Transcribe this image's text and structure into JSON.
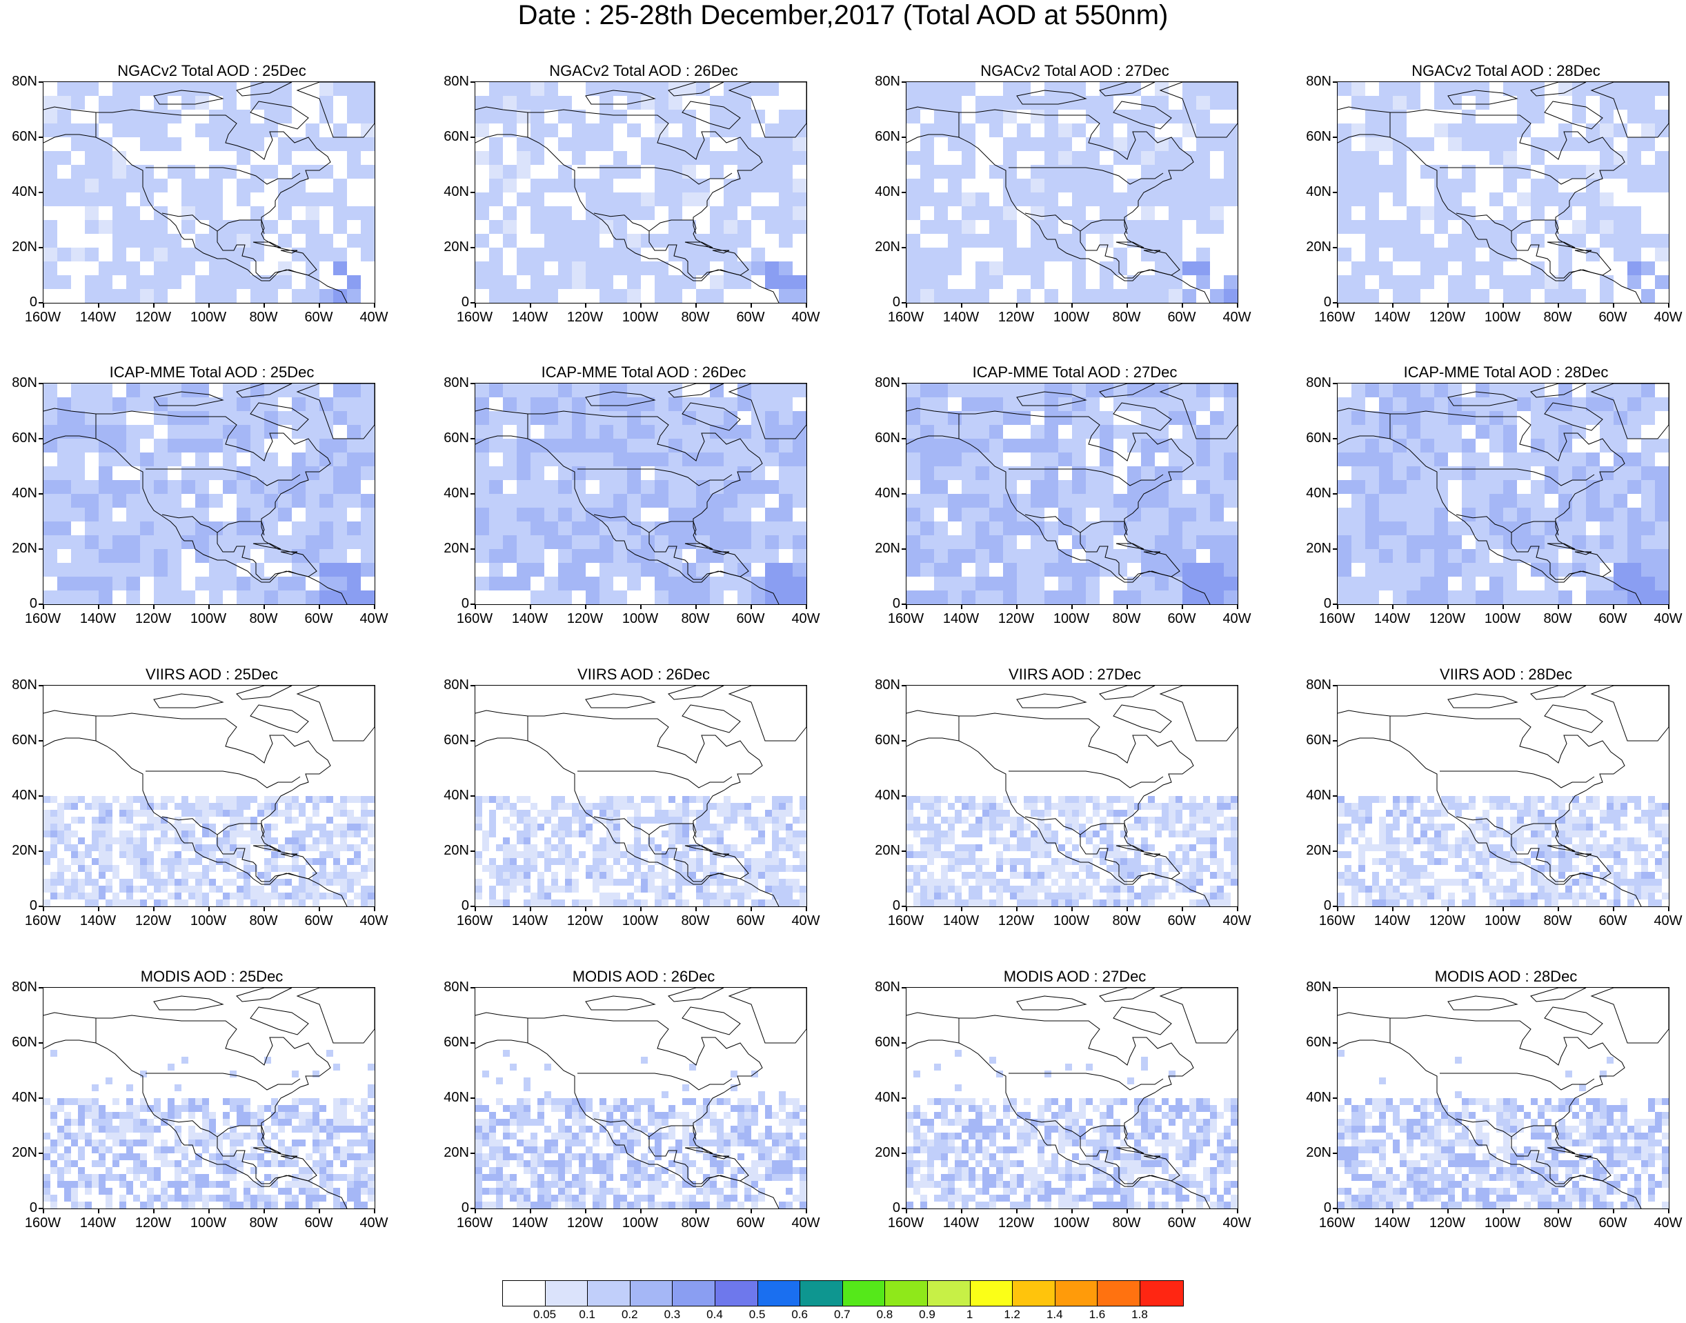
{
  "title": "Date : 25-28th December,2017 (Total AOD at 550nm)",
  "map": {
    "lat_labels": [
      "80N",
      "60N",
      "40N",
      "20N",
      "0"
    ],
    "lon_labels": [
      "160W",
      "140W",
      "120W",
      "100W",
      "80W",
      "60W",
      "40W"
    ],
    "lat_range": [
      0,
      80
    ],
    "lon_range": [
      -160,
      -40
    ]
  },
  "panels": [
    {
      "title": "NGACv2 Total AOD : 25Dec",
      "type": "model",
      "level": 1
    },
    {
      "title": "NGACv2 Total AOD : 26Dec",
      "type": "model",
      "level": 1
    },
    {
      "title": "NGACv2 Total AOD : 27Dec",
      "type": "model",
      "level": 1
    },
    {
      "title": "NGACv2 Total AOD : 28Dec",
      "type": "model",
      "level": 1
    },
    {
      "title": "ICAP-MME Total AOD : 25Dec",
      "type": "model",
      "level": 2
    },
    {
      "title": "ICAP-MME Total AOD : 26Dec",
      "type": "model",
      "level": 2
    },
    {
      "title": "ICAP-MME Total AOD : 27Dec",
      "type": "model",
      "level": 2
    },
    {
      "title": "ICAP-MME Total AOD : 28Dec",
      "type": "model",
      "level": 2
    },
    {
      "title": "VIIRS AOD : 25Dec",
      "type": "satellite",
      "level": 1
    },
    {
      "title": "VIIRS AOD : 26Dec",
      "type": "satellite",
      "level": 1
    },
    {
      "title": "VIIRS AOD : 27Dec",
      "type": "satellite",
      "level": 1
    },
    {
      "title": "VIIRS AOD : 28Dec",
      "type": "satellite",
      "level": 1
    },
    {
      "title": "MODIS AOD : 25Dec",
      "type": "satellite",
      "level": 2
    },
    {
      "title": "MODIS AOD : 26Dec",
      "type": "satellite",
      "level": 2
    },
    {
      "title": "MODIS AOD : 27Dec",
      "type": "satellite",
      "level": 2
    },
    {
      "title": "MODIS AOD : 28Dec",
      "type": "satellite",
      "level": 2
    }
  ],
  "colorbar": {
    "colors": [
      "#ffffff",
      "#dbe3fb",
      "#c1cffa",
      "#a5b7f6",
      "#8a9ef2",
      "#6e78ec",
      "#1a6ff0",
      "#0e9690",
      "#55e81a",
      "#8fe81a",
      "#c7f046",
      "#fbff17",
      "#ffc40c",
      "#ff9b0a",
      "#ff7210",
      "#ff2612"
    ],
    "labels": [
      "0.05",
      "0.1",
      "0.2",
      "0.3",
      "0.4",
      "0.5",
      "0.6",
      "0.7",
      "0.8",
      "0.9",
      "1",
      "1.2",
      "1.4",
      "1.6",
      "1.8"
    ]
  }
}
